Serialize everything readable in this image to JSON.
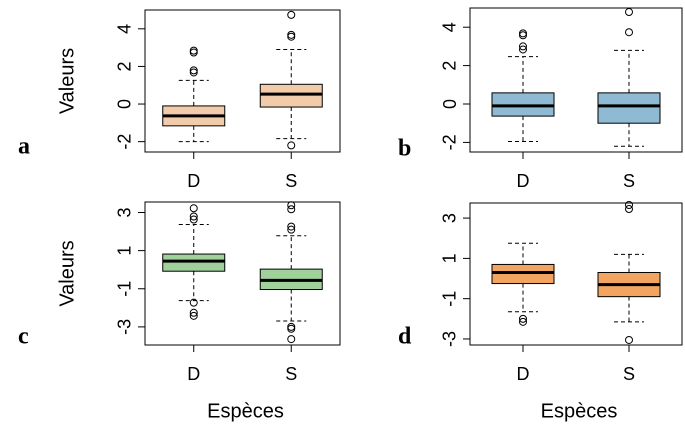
{
  "chart_data": [
    {
      "type": "box",
      "panel_label": "a",
      "y_label": "Valeurs",
      "color": "#f2cbaa",
      "categories": [
        "D",
        "S"
      ],
      "ylim": [
        -2.55,
        5.0
      ],
      "yticks": [
        -2,
        0,
        2,
        4
      ],
      "boxes": [
        {
          "low": -2.0,
          "q1": -1.16,
          "median": -0.63,
          "q3": -0.1,
          "high": 1.26,
          "outliers": [
            1.68,
            1.79,
            2.74,
            2.84
          ]
        },
        {
          "low": -1.84,
          "q1": -0.16,
          "median": 0.53,
          "q3": 1.05,
          "high": 2.9,
          "outliers": [
            -2.2,
            3.58,
            3.68,
            4.74
          ]
        }
      ]
    },
    {
      "type": "box",
      "panel_label": "b",
      "color": "#8fbad3",
      "categories": [
        "D",
        "S"
      ],
      "ylim": [
        -2.5,
        5.0
      ],
      "yticks": [
        -2,
        0,
        2,
        4
      ],
      "boxes": [
        {
          "low": -1.95,
          "q1": -0.63,
          "median": -0.1,
          "q3": 0.58,
          "high": 2.47,
          "outliers": [
            2.84,
            3.0,
            3.58,
            3.68
          ]
        },
        {
          "low": -2.2,
          "q1": -1.0,
          "median": -0.1,
          "q3": 0.58,
          "high": 2.79,
          "outliers": [
            3.74,
            4.79
          ]
        }
      ]
    },
    {
      "type": "box",
      "panel_label": "c",
      "y_label": "Valeurs",
      "x_label": "Espèces",
      "color": "#a0d19b",
      "categories": [
        "D",
        "S"
      ],
      "ylim": [
        -3.95,
        3.55
      ],
      "yticks": [
        -3,
        -1,
        1,
        3
      ],
      "boxes": [
        {
          "low": -1.62,
          "q1": -0.08,
          "median": 0.45,
          "q3": 0.82,
          "high": 2.37,
          "outliers": [
            -1.73,
            -2.26,
            -2.42,
            2.63,
            2.79,
            3.22
          ]
        },
        {
          "low": -2.69,
          "q1": -1.04,
          "median": -0.56,
          "q3": 0.03,
          "high": 1.78,
          "outliers": [
            -3.0,
            -3.1,
            -3.64,
            2.1,
            2.26,
            3.17,
            3.38
          ]
        }
      ]
    },
    {
      "type": "box",
      "panel_label": "d",
      "x_label": "Espèces",
      "color": "#f2a461",
      "categories": [
        "D",
        "S"
      ],
      "ylim": [
        -3.3,
        3.75
      ],
      "yticks": [
        -3,
        -1,
        1,
        3
      ],
      "boxes": [
        {
          "low": -1.65,
          "q1": -0.25,
          "median": 0.3,
          "q3": 0.7,
          "high": 1.75,
          "outliers": [
            -2.0,
            -2.15
          ]
        },
        {
          "low": -2.15,
          "q1": -0.9,
          "median": -0.3,
          "q3": 0.3,
          "high": 1.2,
          "outliers": [
            -3.05,
            3.45,
            3.65
          ]
        }
      ]
    }
  ]
}
